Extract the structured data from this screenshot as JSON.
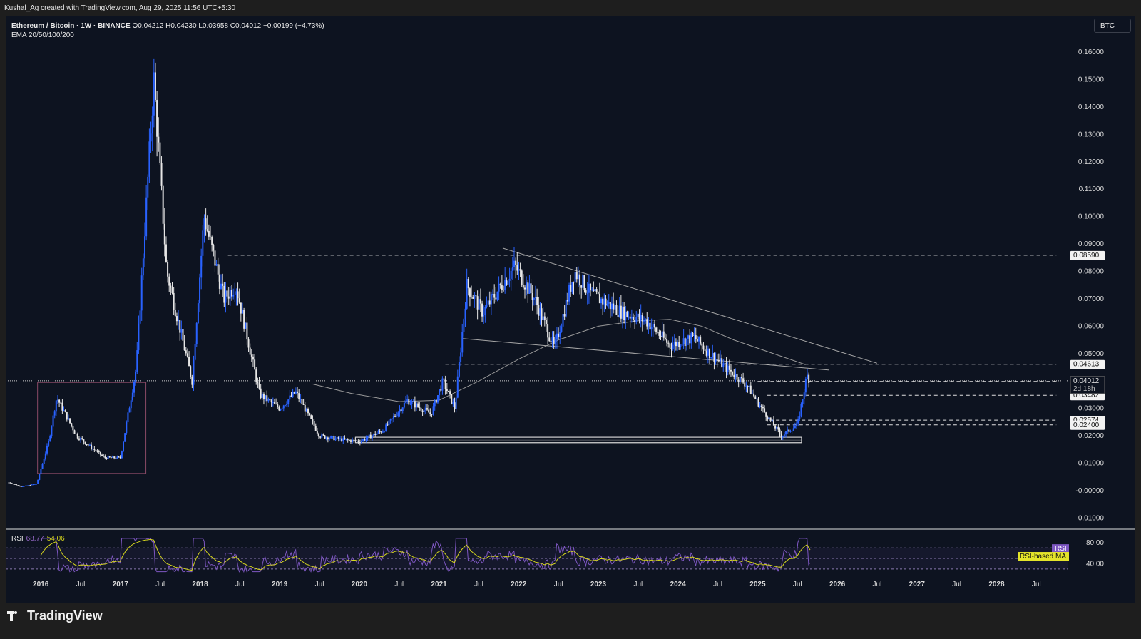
{
  "credit": "Kushal_Ag created with TradingView.com, Aug 29, 2025 11:56 UTC+5:30",
  "legend": {
    "symbol": "Ethereum / Bitcoin · 1W · BINANCE",
    "ohlc": "O0.04212 H0.04230 L0.03958 C0.04012 −0.00199 (−4.73%)",
    "indicator": "EMA 20/50/100/200"
  },
  "currency_button": "BTC",
  "rsi_legend": {
    "label": "RSI",
    "value": "68.77",
    "ma_value": "54.06"
  },
  "brand": "TradingView",
  "colors": {
    "background": "#0d1320",
    "candle_up": "#2962ff",
    "candle_down": "#e6e6e6",
    "rsi": "#7e57c2",
    "rsi_ma": "#d6d61e"
  },
  "chart_data": [
    {
      "type": "candlestick",
      "title": "Ethereum / Bitcoin · 1W · BINANCE",
      "ylim": [
        -0.013,
        0.166
      ],
      "y_ticks": [
        "0.16000",
        "0.15000",
        "0.14000",
        "0.13000",
        "0.12000",
        "0.11000",
        "0.10000",
        "0.09000",
        "0.08000",
        "0.07000",
        "0.06000",
        "0.05000",
        "0.04000",
        "0.03000",
        "0.02000",
        "0.01000",
        "-0.00000",
        "-0.01000"
      ],
      "y_tick_values": [
        0.16,
        0.15,
        0.14,
        0.13,
        0.12,
        0.11,
        0.1,
        0.09,
        0.08,
        0.07,
        0.06,
        0.05,
        0.04,
        0.03,
        0.02,
        0.01,
        0.0,
        -0.01
      ],
      "x_ticks": [
        "2016",
        "Jul",
        "2017",
        "Jul",
        "2018",
        "Jul",
        "2019",
        "Jul",
        "2020",
        "Jul",
        "2021",
        "Jul",
        "2022",
        "Jul",
        "2023",
        "Jul",
        "2024",
        "Jul",
        "2025",
        "Jul",
        "2026",
        "Jul",
        "2027",
        "Jul",
        "2028",
        "Jul"
      ],
      "x_tick_values": [
        2016.0,
        2016.5,
        2017.0,
        2017.5,
        2018.0,
        2018.5,
        2019.0,
        2019.5,
        2020.0,
        2020.5,
        2021.0,
        2021.5,
        2022.0,
        2022.5,
        2023.0,
        2023.5,
        2024.0,
        2024.5,
        2025.0,
        2025.5,
        2026.0,
        2026.5,
        2027.0,
        2027.5,
        2028.0,
        2028.5
      ],
      "x_range": [
        2015.56,
        2028.9
      ],
      "price_anchors": [
        {
          "date": 2015.6,
          "price": 0.003
        },
        {
          "date": 2015.75,
          "price": 0.0015
        },
        {
          "date": 2015.95,
          "price": 0.0025
        },
        {
          "date": 2016.1,
          "price": 0.018
        },
        {
          "date": 2016.2,
          "price": 0.034
        },
        {
          "date": 2016.45,
          "price": 0.02
        },
        {
          "date": 2016.8,
          "price": 0.012
        },
        {
          "date": 2017.0,
          "price": 0.012
        },
        {
          "date": 2017.2,
          "price": 0.045
        },
        {
          "date": 2017.42,
          "price": 0.15
        },
        {
          "date": 2017.58,
          "price": 0.08
        },
        {
          "date": 2017.9,
          "price": 0.04
        },
        {
          "date": 2018.05,
          "price": 0.1
        },
        {
          "date": 2018.3,
          "price": 0.07
        },
        {
          "date": 2018.45,
          "price": 0.075
        },
        {
          "date": 2018.75,
          "price": 0.035
        },
        {
          "date": 2019.0,
          "price": 0.03
        },
        {
          "date": 2019.2,
          "price": 0.036
        },
        {
          "date": 2019.5,
          "price": 0.02
        },
        {
          "date": 2019.8,
          "price": 0.0185
        },
        {
          "date": 2020.0,
          "price": 0.018
        },
        {
          "date": 2020.3,
          "price": 0.022
        },
        {
          "date": 2020.6,
          "price": 0.033
        },
        {
          "date": 2020.9,
          "price": 0.028
        },
        {
          "date": 2021.05,
          "price": 0.04
        },
        {
          "date": 2021.2,
          "price": 0.03
        },
        {
          "date": 2021.35,
          "price": 0.075
        },
        {
          "date": 2021.55,
          "price": 0.065
        },
        {
          "date": 2021.95,
          "price": 0.082
        },
        {
          "date": 2022.2,
          "price": 0.07
        },
        {
          "date": 2022.45,
          "price": 0.052
        },
        {
          "date": 2022.7,
          "price": 0.08
        },
        {
          "date": 2022.9,
          "price": 0.072
        },
        {
          "date": 2023.3,
          "price": 0.065
        },
        {
          "date": 2023.6,
          "price": 0.062
        },
        {
          "date": 2023.9,
          "price": 0.053
        },
        {
          "date": 2024.2,
          "price": 0.056
        },
        {
          "date": 2024.4,
          "price": 0.05
        },
        {
          "date": 2024.6,
          "price": 0.045
        },
        {
          "date": 2024.85,
          "price": 0.039
        },
        {
          "date": 2025.1,
          "price": 0.028
        },
        {
          "date": 2025.3,
          "price": 0.02
        },
        {
          "date": 2025.5,
          "price": 0.024
        },
        {
          "date": 2025.62,
          "price": 0.042
        },
        {
          "date": 2025.66,
          "price": 0.0401
        }
      ],
      "ema_line": [
        {
          "date": 2019.4,
          "price": 0.039
        },
        {
          "date": 2019.9,
          "price": 0.0355
        },
        {
          "date": 2020.5,
          "price": 0.0325
        },
        {
          "date": 2021.0,
          "price": 0.033
        },
        {
          "date": 2021.5,
          "price": 0.04
        },
        {
          "date": 2022.0,
          "price": 0.048
        },
        {
          "date": 2022.5,
          "price": 0.055
        },
        {
          "date": 2023.0,
          "price": 0.06
        },
        {
          "date": 2023.5,
          "price": 0.062
        },
        {
          "date": 2023.9,
          "price": 0.0625
        },
        {
          "date": 2024.3,
          "price": 0.06
        },
        {
          "date": 2024.7,
          "price": 0.055
        },
        {
          "date": 2025.2,
          "price": 0.05
        },
        {
          "date": 2025.6,
          "price": 0.046
        }
      ],
      "horizontal_levels": [
        {
          "label": "0.08590",
          "price": 0.0859,
          "from": 2018.35,
          "to": 2028.75
        },
        {
          "label": "0.04613",
          "price": 0.04613,
          "from": 2021.08,
          "to": 2028.75
        },
        {
          "label": "0.03989",
          "price": 0.03989,
          "from": 2025.0,
          "to": 2028.75
        },
        {
          "label": "0.03482",
          "price": 0.03482,
          "from": 2025.12,
          "to": 2028.75
        },
        {
          "label": "0.02574",
          "price": 0.02574,
          "from": 2025.15,
          "to": 2028.75
        },
        {
          "label": "0.02400",
          "price": 0.024,
          "from": 2025.12,
          "to": 2028.75
        }
      ],
      "current_price": {
        "label": "0.04012",
        "countdown": "2d 18h",
        "price": 0.04012
      },
      "trendlines": [
        {
          "from": [
            2021.8,
            0.0885
          ],
          "to": [
            2026.5,
            0.0465
          ]
        },
        {
          "from": [
            2021.3,
            0.0555
          ],
          "to": [
            2025.9,
            0.044
          ]
        }
      ],
      "support_zone": {
        "from": 2019.95,
        "to": 2025.55,
        "top": 0.0195,
        "bottom": 0.0175
      },
      "box": {
        "from": 2015.96,
        "to": 2017.32,
        "top": 0.0395,
        "bottom": 0.0063
      }
    },
    {
      "type": "line",
      "title": "RSI",
      "series": [
        {
          "name": "RSI",
          "values_hint": "oscillating 30–85, last 68.77"
        },
        {
          "name": "RSI-based MA",
          "values_hint": "smoothed, last 54.06"
        }
      ],
      "y_ticks": [
        "80.00",
        "40.00"
      ],
      "levels": [
        70,
        50,
        30
      ],
      "tags": [
        "RSI",
        "RSI-based MA"
      ]
    }
  ]
}
